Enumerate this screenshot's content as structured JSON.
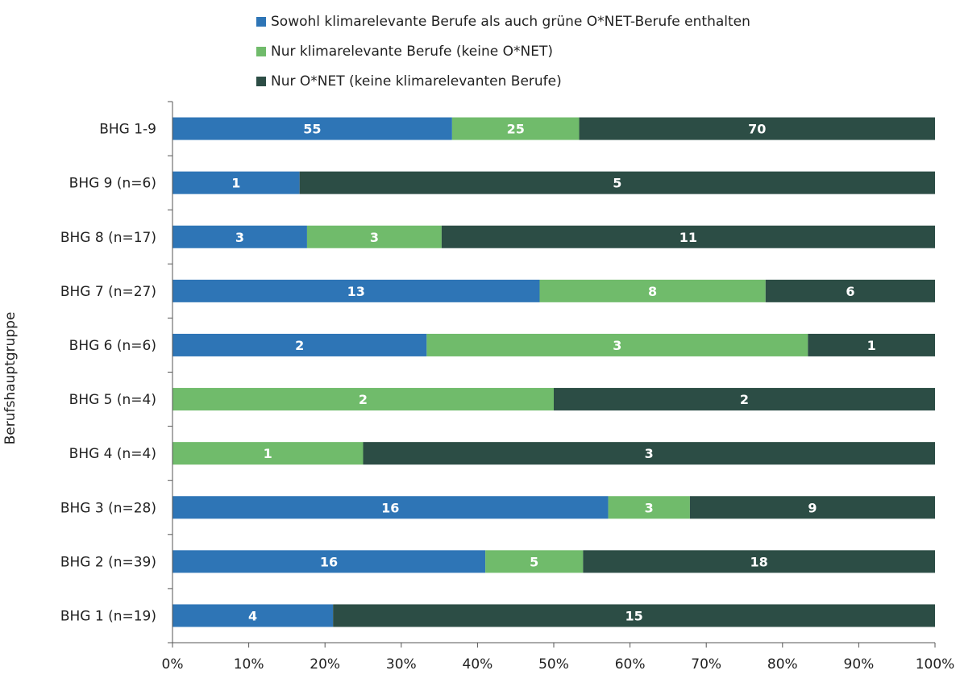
{
  "chart_data": {
    "type": "bar",
    "orientation": "horizontal",
    "stacked": "percent",
    "ylabel": "Berufshauptgruppe",
    "xlim": [
      0,
      100
    ],
    "x_ticks": [
      "0%",
      "10%",
      "20%",
      "30%",
      "40%",
      "50%",
      "60%",
      "70%",
      "80%",
      "90%",
      "100%"
    ],
    "legend_position": "top",
    "grid": false,
    "categories": [
      "BHG 1-9",
      "BHG 9 (n=6)",
      "BHG 8 (n=17)",
      "BHG 7 (n=27)",
      "BHG 6 (n=6)",
      "BHG 5 (n=4)",
      "BHG 4 (n=4)",
      "BHG 3 (n=28)",
      "BHG 2 (n=39)",
      "BHG 1 (n=19)"
    ],
    "series": [
      {
        "name": "Sowohl klimarelevante Berufe als auch grüne O*NET-Berufe enthalten",
        "color": "#2e75b6",
        "values": [
          55,
          1,
          3,
          13,
          2,
          0,
          0,
          16,
          16,
          4
        ]
      },
      {
        "name": "Nur klimarelevante Berufe (keine O*NET)",
        "color": "#70bb6b",
        "values": [
          25,
          0,
          3,
          8,
          3,
          2,
          1,
          3,
          5,
          0
        ]
      },
      {
        "name": "Nur O*NET (keine klimarelevanten Berufe)",
        "color": "#2c4d45",
        "values": [
          70,
          5,
          11,
          6,
          1,
          2,
          3,
          9,
          18,
          15
        ]
      }
    ]
  }
}
